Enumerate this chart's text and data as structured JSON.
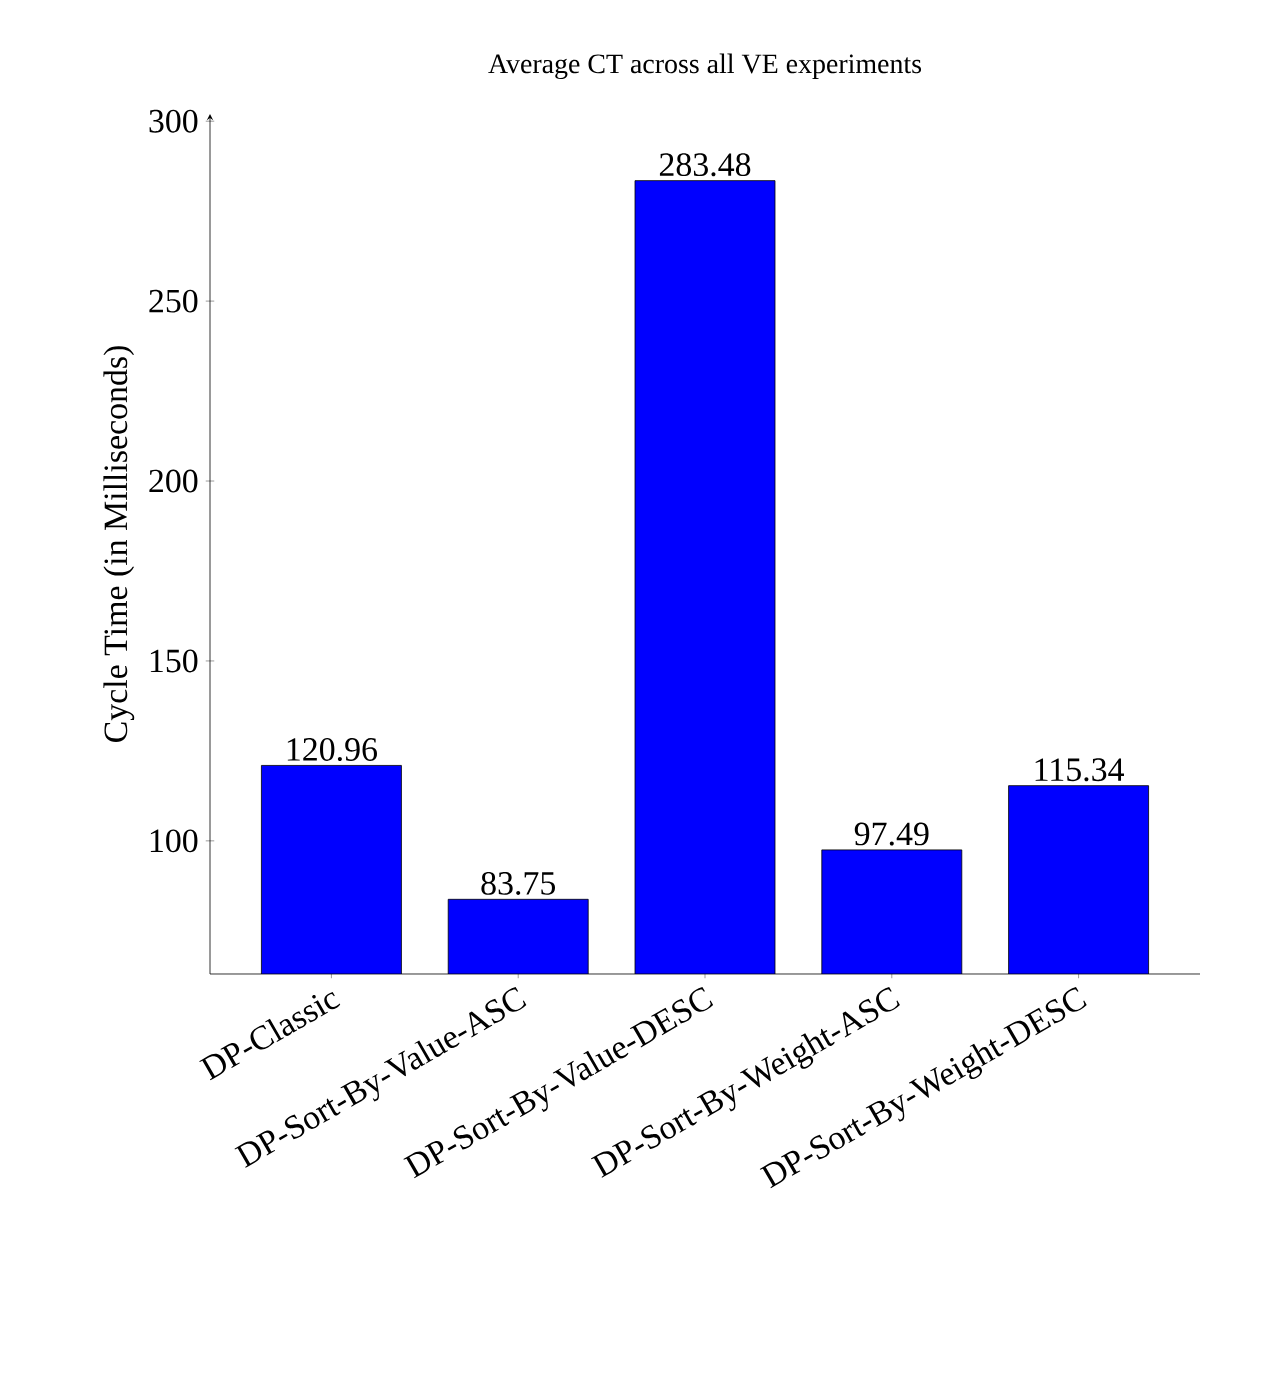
{
  "chart_data": {
    "type": "bar",
    "title": "Average CT across all VE experiments",
    "ylabel": "Cycle Time (in Milliseconds)",
    "categories": [
      "DP-Classic",
      "DP-Sort-By-Value-ASC",
      "DP-Sort-By-Value-DESC",
      "DP-Sort-By-Weight-ASC",
      "DP-Sort-By-Weight-DESC"
    ],
    "values": [
      120.96,
      83.75,
      283.48,
      97.49,
      115.34
    ],
    "color": "#0000ff",
    "ylim": [
      63,
      302
    ],
    "yticks": [
      100,
      150,
      200,
      250,
      300
    ],
    "data_labels": true
  }
}
